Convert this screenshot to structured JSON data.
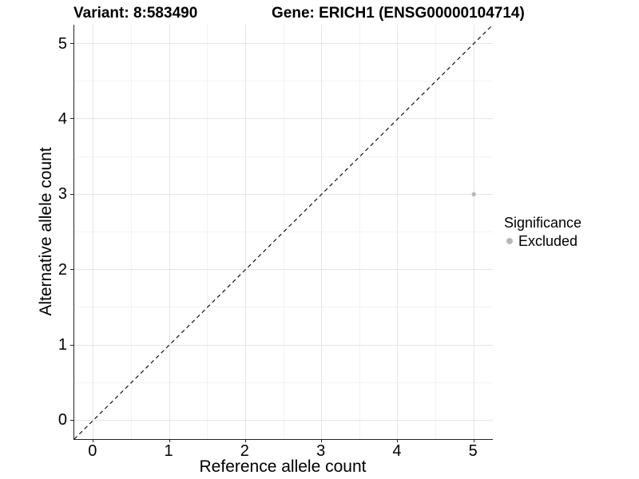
{
  "titles": {
    "variant": "Variant: 8:583490",
    "gene": "Gene: ERICH1 (ENSG00000104714)"
  },
  "chart_data": {
    "type": "scatter",
    "title": "Variant: 8:583490    Gene: ERICH1 (ENSG00000104714)",
    "xlabel": "Reference allele count",
    "ylabel": "Alternative allele count",
    "xlim": [
      -0.25,
      5.25
    ],
    "ylim": [
      -0.25,
      5.25
    ],
    "xticks": [
      0,
      1,
      2,
      3,
      4,
      5
    ],
    "yticks": [
      0,
      1,
      2,
      3,
      4,
      5
    ],
    "grid": "major-and-minor",
    "background": "#ffffff",
    "gridline_color": "#e5e5e5",
    "points": [
      {
        "x": 5,
        "y": 3,
        "series": "Excluded",
        "color": "#b8b8b8",
        "radius": 2.7
      }
    ],
    "reference_line": {
      "type": "identity",
      "slope": 1,
      "intercept": 0,
      "style": "dashed",
      "color": "#111111"
    },
    "legend": {
      "title": "Significance",
      "position": "right",
      "entries": [
        {
          "label": "Excluded",
          "color": "#b8b8b8"
        }
      ]
    }
  }
}
